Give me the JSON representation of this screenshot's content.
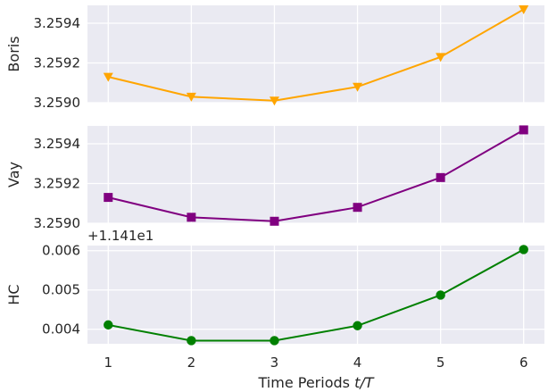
{
  "chart_data": [
    {
      "type": "line",
      "ylabel": "Boris",
      "x": [
        1,
        2,
        3,
        4,
        5,
        6
      ],
      "series": [
        {
          "name": "",
          "values": [
            3.25913,
            3.25903,
            3.25901,
            3.25908,
            3.25923,
            3.25947
          ],
          "color": "#FFA500",
          "marker": "triangle-down"
        }
      ],
      "ylim": [
        3.259,
        3.25949
      ],
      "yticks": [
        3.259,
        3.2592,
        3.2594
      ],
      "ytick_labels": [
        "3.2590",
        "3.2592",
        "3.2594"
      ],
      "grid": true
    },
    {
      "type": "line",
      "ylabel": "Vay",
      "x": [
        1,
        2,
        3,
        4,
        5,
        6
      ],
      "series": [
        {
          "name": "",
          "values": [
            3.25913,
            3.25903,
            3.25901,
            3.25908,
            3.25923,
            3.25947
          ],
          "color": "#800080",
          "marker": "square"
        }
      ],
      "ylim": [
        3.259,
        3.25949
      ],
      "yticks": [
        3.259,
        3.2592,
        3.2594
      ],
      "ytick_labels": [
        "3.2590",
        "3.2592",
        "3.2594"
      ],
      "grid": true
    },
    {
      "type": "line",
      "ylabel": "HC",
      "offset_label": "+1.141e1",
      "x": [
        1,
        2,
        3,
        4,
        5,
        6
      ],
      "series": [
        {
          "name": "",
          "values": [
            0.00411,
            0.00371,
            0.00371,
            0.00409,
            0.00487,
            0.00603
          ],
          "color": "#008000",
          "marker": "circle"
        }
      ],
      "ylim": [
        0.00363,
        0.00613
      ],
      "yticks": [
        0.004,
        0.005,
        0.006
      ],
      "ytick_labels": [
        "0.004",
        "0.005",
        "0.006"
      ],
      "grid": true
    }
  ],
  "xaxis": {
    "label": "Time Periods t/T",
    "ticks": [
      1,
      2,
      3,
      4,
      5,
      6
    ],
    "tick_labels": [
      "1",
      "2",
      "3",
      "4",
      "5",
      "6"
    ],
    "xlim": [
      0.75,
      6.25
    ]
  },
  "colors": {
    "plot_background": "#EAEAF2",
    "grid": "#FFFFFF"
  }
}
